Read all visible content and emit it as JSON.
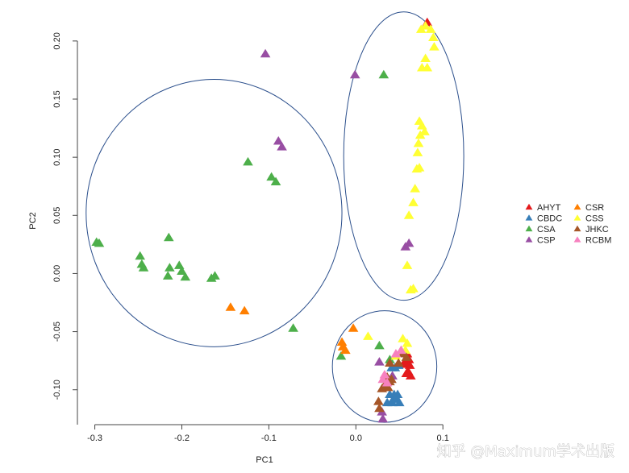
{
  "chart_data": {
    "type": "scatter",
    "xlabel": "PC1",
    "ylabel": "PC2",
    "xlim": [
      -0.32,
      0.11
    ],
    "ylim": [
      -0.13,
      0.22
    ],
    "x_ticks": [
      -0.3,
      -0.2,
      -0.1,
      0.0,
      0.1
    ],
    "x_tick_labels": [
      "-0.3",
      "-0.2",
      "-0.1",
      "0.0",
      "0.1"
    ],
    "y_ticks": [
      -0.1,
      -0.05,
      0.0,
      0.05,
      0.1,
      0.15,
      0.2
    ],
    "y_tick_labels": [
      "-0.10",
      "-0.05",
      "0.00",
      "0.05",
      "0.10",
      "0.15",
      "0.20"
    ],
    "grid": false,
    "legend_position": "right",
    "marker": "triangle",
    "series": [
      {
        "name": "AHYT",
        "color": "#e41a1c",
        "points": [
          [
            0.082,
            0.216
          ],
          [
            0.059,
            -0.069
          ],
          [
            0.061,
            -0.074
          ],
          [
            0.057,
            -0.078
          ],
          [
            0.062,
            -0.079
          ],
          [
            0.06,
            -0.084
          ],
          [
            0.058,
            -0.086
          ],
          [
            0.063,
            -0.088
          ],
          [
            0.056,
            -0.076
          ]
        ]
      },
      {
        "name": "CBDC",
        "color": "#377eb8",
        "points": [
          [
            0.041,
            -0.081
          ],
          [
            0.045,
            -0.081
          ],
          [
            0.049,
            -0.079
          ],
          [
            0.039,
            -0.104
          ],
          [
            0.043,
            -0.108
          ],
          [
            0.047,
            -0.108
          ],
          [
            0.044,
            -0.104
          ],
          [
            0.05,
            -0.111
          ],
          [
            0.036,
            -0.111
          ],
          [
            0.048,
            -0.104
          ],
          [
            0.042,
            -0.111
          ]
        ]
      },
      {
        "name": "CSA",
        "color": "#4daf4a",
        "points": [
          [
            -0.298,
            0.027
          ],
          [
            -0.295,
            0.026
          ],
          [
            -0.248,
            0.015
          ],
          [
            -0.246,
            0.008
          ],
          [
            -0.244,
            0.005
          ],
          [
            -0.215,
            0.031
          ],
          [
            -0.214,
            0.005
          ],
          [
            -0.216,
            -0.002
          ],
          [
            -0.203,
            0.007
          ],
          [
            -0.2,
            0.002
          ],
          [
            -0.196,
            -0.003
          ],
          [
            -0.166,
            -0.004
          ],
          [
            -0.162,
            -0.002
          ],
          [
            -0.124,
            0.096
          ],
          [
            -0.097,
            0.083
          ],
          [
            -0.092,
            0.079
          ],
          [
            -0.072,
            -0.047
          ],
          [
            0.032,
            0.171
          ],
          [
            -0.017,
            -0.071
          ],
          [
            0.027,
            -0.062
          ],
          [
            0.039,
            -0.074
          ]
        ]
      },
      {
        "name": "CSP",
        "color": "#984ea3",
        "points": [
          [
            -0.104,
            0.189
          ],
          [
            -0.089,
            0.114
          ],
          [
            -0.085,
            0.109
          ],
          [
            -0.001,
            0.171
          ],
          [
            0.057,
            0.023
          ],
          [
            0.061,
            0.026
          ],
          [
            0.027,
            -0.076
          ],
          [
            0.042,
            -0.088
          ],
          [
            0.031,
            -0.125
          ],
          [
            0.03,
            -0.119
          ]
        ]
      },
      {
        "name": "CSR",
        "color": "#ff7f00",
        "points": [
          [
            -0.144,
            -0.029
          ],
          [
            -0.128,
            -0.032
          ],
          [
            -0.003,
            -0.047
          ],
          [
            -0.016,
            -0.059
          ],
          [
            -0.015,
            -0.063
          ],
          [
            -0.012,
            -0.066
          ]
        ]
      },
      {
        "name": "CSS",
        "color": "#ffff33",
        "points": [
          [
            0.08,
            0.213
          ],
          [
            0.086,
            0.21
          ],
          [
            0.089,
            0.203
          ],
          [
            0.09,
            0.195
          ],
          [
            0.075,
            0.21
          ],
          [
            0.08,
            0.185
          ],
          [
            0.076,
            0.177
          ],
          [
            0.082,
            0.177
          ],
          [
            0.073,
            0.131
          ],
          [
            0.076,
            0.127
          ],
          [
            0.079,
            0.122
          ],
          [
            0.074,
            0.119
          ],
          [
            0.072,
            0.112
          ],
          [
            0.071,
            0.104
          ],
          [
            0.073,
            0.091
          ],
          [
            0.07,
            0.09
          ],
          [
            0.068,
            0.073
          ],
          [
            0.066,
            0.061
          ],
          [
            0.061,
            0.05
          ],
          [
            0.059,
            0.007
          ],
          [
            0.063,
            -0.014
          ],
          [
            0.066,
            -0.013
          ],
          [
            0.014,
            -0.054
          ],
          [
            0.054,
            -0.056
          ],
          [
            0.059,
            -0.06
          ],
          [
            0.052,
            -0.068
          ],
          [
            0.046,
            -0.071
          ],
          [
            0.057,
            -0.066
          ]
        ]
      },
      {
        "name": "JHKC",
        "color": "#a65628",
        "points": [
          [
            0.039,
            -0.077
          ],
          [
            0.049,
            -0.077
          ],
          [
            0.054,
            -0.069
          ],
          [
            0.058,
            -0.072
          ],
          [
            0.036,
            -0.089
          ],
          [
            0.039,
            -0.093
          ],
          [
            0.033,
            -0.096
          ],
          [
            0.037,
            -0.098
          ],
          [
            0.03,
            -0.099
          ],
          [
            0.041,
            -0.091
          ],
          [
            0.026,
            -0.11
          ],
          [
            0.027,
            -0.116
          ]
        ]
      },
      {
        "name": "RCBM",
        "color": "#f781bf",
        "points": [
          [
            0.046,
            -0.069
          ],
          [
            0.052,
            -0.066
          ],
          [
            0.033,
            -0.087
          ],
          [
            0.031,
            -0.091
          ],
          [
            0.036,
            -0.094
          ]
        ]
      }
    ],
    "clusters": [
      {
        "cx": -0.163,
        "cy": 0.052,
        "rx": 0.147,
        "ry": 0.115
      },
      {
        "cx": 0.055,
        "cy": 0.101,
        "rx": 0.069,
        "ry": 0.124
      },
      {
        "cx": 0.033,
        "cy": -0.08,
        "rx": 0.06,
        "ry": 0.048
      }
    ]
  },
  "watermark": {
    "text": "知乎 @Maximum学术出版"
  },
  "colors": {
    "cluster_outline": "#2b4f8c",
    "axis": "#444444"
  }
}
